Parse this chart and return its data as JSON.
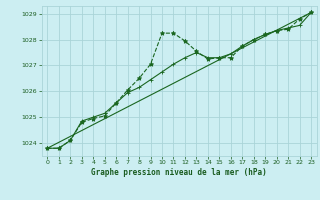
{
  "bg_color": "#cceef2",
  "grid_color": "#aad4d8",
  "line_color": "#1a6620",
  "title": "Graphe pression niveau de la mer (hPa)",
  "title_color": "#1a5c20",
  "xlim": [
    -0.5,
    23.5
  ],
  "ylim": [
    1023.5,
    1029.3
  ],
  "yticks": [
    1024,
    1025,
    1026,
    1027,
    1028,
    1029
  ],
  "xticks": [
    0,
    1,
    2,
    3,
    4,
    5,
    6,
    7,
    8,
    9,
    10,
    11,
    12,
    13,
    14,
    15,
    16,
    17,
    18,
    19,
    20,
    21,
    22,
    23
  ],
  "series1_x": [
    0,
    1,
    2,
    3,
    4,
    5,
    6,
    7,
    8,
    9,
    10,
    11,
    12,
    13,
    14,
    15,
    16,
    17,
    18,
    19,
    20,
    21,
    22,
    23
  ],
  "series1_y": [
    1023.8,
    1023.8,
    1024.1,
    1024.8,
    1024.95,
    1025.05,
    1025.55,
    1026.05,
    1026.5,
    1027.05,
    1028.25,
    1028.25,
    1027.95,
    1027.55,
    1027.25,
    1027.3,
    1027.3,
    1027.75,
    1028.0,
    1028.2,
    1028.35,
    1028.4,
    1028.8,
    1029.05
  ],
  "series2_x": [
    0,
    1,
    2,
    3,
    4,
    5,
    6,
    7,
    8,
    9,
    10,
    11,
    12,
    13,
    14,
    15,
    16,
    17,
    18,
    19,
    20,
    21,
    22,
    23
  ],
  "series2_y": [
    1023.8,
    1023.8,
    1024.1,
    1024.85,
    1025.0,
    1025.15,
    1025.55,
    1025.95,
    1026.15,
    1026.45,
    1026.75,
    1027.05,
    1027.3,
    1027.5,
    1027.3,
    1027.3,
    1027.45,
    1027.75,
    1028.0,
    1028.2,
    1028.35,
    1028.45,
    1028.55,
    1029.05
  ],
  "series3_x": [
    0,
    23
  ],
  "series3_y": [
    1023.8,
    1029.05
  ]
}
